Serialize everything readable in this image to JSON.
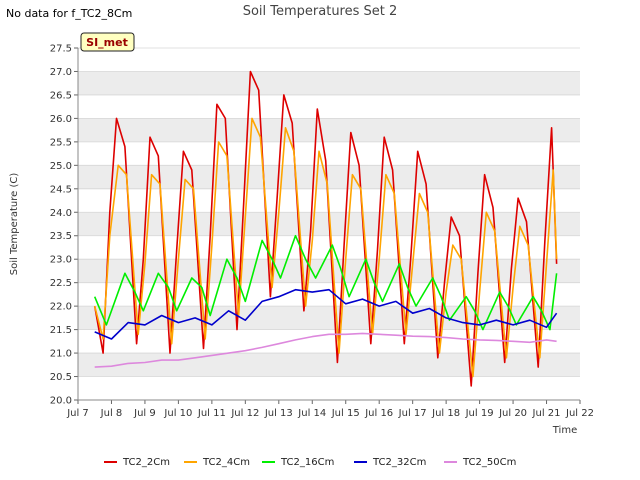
{
  "no_data_note": "No data for f_TC2_8Cm",
  "site_badge": "SI_met",
  "colors": {
    "TC2_2Cm": "#dd0000",
    "TC2_4Cm": "#ffa500",
    "TC2_16Cm": "#00ee00",
    "TC2_32Cm": "#0000cc",
    "TC2_50Cm": "#dd88dd",
    "band": "#ececec",
    "badge_fill": "#ffffc0",
    "badge_text": "#990000"
  },
  "chart_data": {
    "type": "line",
    "title": "Soil Temperatures Set 2",
    "xlabel": "Time",
    "ylabel": "Soil Temperature (C)",
    "x_ticks": [
      "Jul 7",
      "Jul 8",
      "Jul 9",
      "Jul 10",
      "Jul 11",
      "Jul 12",
      "Jul 13",
      "Jul 14",
      "Jul 15",
      "Jul 16",
      "Jul 17",
      "Jul 18",
      "Jul 19",
      "Jul 20",
      "Jul 21",
      "Jul 22"
    ],
    "y_ticks": [
      "20.0",
      "20.5",
      "21.0",
      "21.5",
      "22.0",
      "22.5",
      "23.0",
      "23.5",
      "24.0",
      "24.5",
      "25.0",
      "25.5",
      "26.0",
      "26.5",
      "27.0",
      "27.5"
    ],
    "x_range_days": [
      7,
      22
    ],
    "ylim": [
      20.0,
      27.5
    ],
    "grid": "horizontal bands",
    "legend_position": "bottom",
    "series": [
      {
        "name": "TC2_2Cm",
        "x": [
          7.5,
          7.75,
          7.95,
          8.15,
          8.4,
          8.75,
          8.95,
          9.15,
          9.4,
          9.75,
          9.95,
          10.15,
          10.4,
          10.75,
          10.95,
          11.15,
          11.4,
          11.75,
          11.95,
          12.15,
          12.4,
          12.75,
          12.95,
          13.15,
          13.4,
          13.75,
          13.95,
          14.15,
          14.4,
          14.75,
          14.95,
          15.15,
          15.4,
          15.75,
          15.95,
          16.15,
          16.4,
          16.75,
          16.95,
          17.15,
          17.4,
          17.75,
          17.95,
          18.15,
          18.4,
          18.75,
          18.95,
          19.15,
          19.4,
          19.75,
          19.95,
          20.15,
          20.4,
          20.75,
          20.95,
          21.15,
          21.3
        ],
        "y": [
          22.0,
          21.0,
          24.0,
          26.0,
          25.4,
          21.2,
          23.0,
          25.6,
          25.2,
          21.0,
          23.2,
          25.3,
          24.9,
          21.1,
          23.5,
          26.3,
          26.0,
          21.5,
          24.2,
          27.0,
          26.6,
          22.2,
          24.3,
          26.5,
          25.9,
          21.9,
          23.6,
          26.2,
          25.1,
          20.8,
          23.3,
          25.7,
          25.0,
          21.2,
          23.2,
          25.6,
          24.9,
          21.2,
          23.1,
          25.3,
          24.6,
          20.9,
          22.5,
          23.9,
          23.5,
          20.3,
          22.7,
          24.8,
          24.1,
          20.8,
          22.8,
          24.3,
          23.8,
          20.7,
          23.4,
          25.8,
          22.9
        ]
      },
      {
        "name": "TC2_4Cm",
        "x": [
          7.5,
          7.75,
          7.95,
          8.2,
          8.45,
          8.8,
          9.0,
          9.2,
          9.45,
          9.8,
          10.0,
          10.2,
          10.45,
          10.8,
          11.0,
          11.2,
          11.45,
          11.8,
          12.0,
          12.2,
          12.45,
          12.8,
          13.0,
          13.2,
          13.45,
          13.8,
          14.0,
          14.2,
          14.45,
          14.8,
          15.0,
          15.2,
          15.45,
          15.8,
          16.0,
          16.2,
          16.45,
          16.8,
          17.0,
          17.2,
          17.45,
          17.8,
          18.0,
          18.2,
          18.45,
          18.8,
          19.0,
          19.2,
          19.45,
          19.8,
          20.0,
          20.2,
          20.45,
          20.8,
          21.0,
          21.2,
          21.3
        ],
        "y": [
          22.0,
          21.3,
          23.5,
          25.0,
          24.8,
          21.4,
          22.9,
          24.8,
          24.6,
          21.2,
          23.0,
          24.7,
          24.5,
          21.3,
          23.3,
          25.5,
          25.2,
          21.8,
          23.9,
          26.0,
          25.6,
          22.4,
          24.0,
          25.8,
          25.3,
          22.0,
          23.4,
          25.3,
          24.6,
          21.0,
          23.0,
          24.8,
          24.5,
          21.4,
          23.0,
          24.8,
          24.4,
          21.4,
          22.9,
          24.4,
          24.0,
          21.0,
          22.3,
          23.3,
          23.0,
          20.5,
          22.3,
          24.0,
          23.6,
          20.9,
          22.4,
          23.7,
          23.3,
          20.9,
          22.9,
          24.9,
          23.0
        ]
      },
      {
        "name": "TC2_16Cm",
        "x": [
          7.5,
          7.85,
          8.4,
          8.7,
          8.95,
          9.4,
          9.7,
          9.95,
          10.4,
          10.7,
          10.95,
          11.45,
          11.75,
          12.0,
          12.5,
          12.8,
          13.05,
          13.5,
          13.8,
          14.1,
          14.6,
          14.85,
          15.1,
          15.6,
          15.85,
          16.1,
          16.6,
          16.85,
          17.1,
          17.6,
          17.85,
          18.1,
          18.6,
          18.85,
          19.1,
          19.6,
          19.85,
          20.1,
          20.6,
          20.85,
          21.1,
          21.3
        ],
        "y": [
          22.2,
          21.6,
          22.7,
          22.3,
          21.9,
          22.7,
          22.4,
          21.9,
          22.6,
          22.4,
          21.8,
          23.0,
          22.6,
          22.1,
          23.4,
          23.0,
          22.6,
          23.5,
          23.0,
          22.6,
          23.3,
          22.8,
          22.2,
          23.0,
          22.5,
          22.1,
          22.9,
          22.4,
          22.0,
          22.6,
          22.2,
          21.7,
          22.2,
          21.9,
          21.5,
          22.3,
          22.0,
          21.6,
          22.2,
          21.9,
          21.5,
          22.7
        ]
      },
      {
        "name": "TC2_32Cm",
        "x": [
          7.5,
          8.0,
          8.5,
          9.0,
          9.5,
          10.0,
          10.5,
          11.0,
          11.5,
          12.0,
          12.5,
          13.0,
          13.5,
          14.0,
          14.5,
          15.0,
          15.5,
          16.0,
          16.5,
          17.0,
          17.5,
          18.0,
          18.5,
          19.0,
          19.5,
          20.0,
          20.5,
          21.0,
          21.3
        ],
        "y": [
          21.45,
          21.3,
          21.65,
          21.6,
          21.8,
          21.65,
          21.75,
          21.6,
          21.9,
          21.7,
          22.1,
          22.2,
          22.35,
          22.3,
          22.35,
          22.05,
          22.15,
          22.0,
          22.1,
          21.85,
          21.95,
          21.75,
          21.65,
          21.6,
          21.7,
          21.6,
          21.7,
          21.55,
          21.85
        ]
      },
      {
        "name": "TC2_50Cm",
        "x": [
          7.5,
          8.0,
          8.5,
          9.0,
          9.5,
          10.0,
          10.5,
          11.0,
          11.5,
          12.0,
          12.5,
          13.0,
          13.5,
          14.0,
          14.5,
          15.0,
          15.5,
          16.0,
          16.5,
          17.0,
          17.5,
          18.0,
          18.5,
          19.0,
          19.5,
          20.0,
          20.5,
          21.0,
          21.3
        ],
        "y": [
          20.7,
          20.72,
          20.78,
          20.8,
          20.85,
          20.85,
          20.9,
          20.95,
          21.0,
          21.05,
          21.12,
          21.2,
          21.28,
          21.35,
          21.4,
          21.4,
          21.42,
          21.4,
          21.38,
          21.36,
          21.35,
          21.33,
          21.3,
          21.28,
          21.27,
          21.25,
          21.23,
          21.28,
          21.25
        ]
      }
    ]
  }
}
